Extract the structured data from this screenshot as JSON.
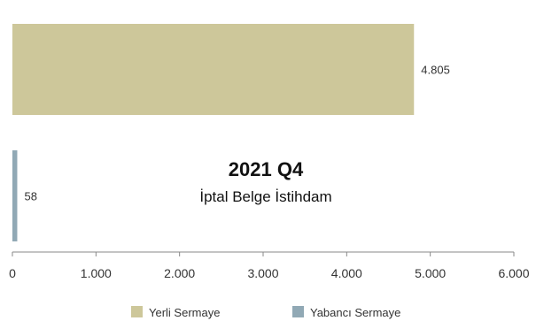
{
  "chart_data": {
    "type": "bar",
    "orientation": "horizontal",
    "title": "2021 Q4",
    "subtitle": "İptal Belge İstihdam",
    "categories": [
      "Yerli Sermaye",
      "Yabancı Sermaye"
    ],
    "values": [
      4805,
      58
    ],
    "data_labels": [
      "4.805",
      "58"
    ],
    "colors": [
      "#cdc79a",
      "#91a9b5"
    ],
    "xlim": [
      0,
      6000
    ],
    "x_ticks": [
      0,
      1000,
      2000,
      3000,
      4000,
      5000,
      6000
    ],
    "x_tick_labels": [
      "0",
      "1.000",
      "2.000",
      "3.000",
      "4.000",
      "5.000",
      "6.000"
    ],
    "grid": false,
    "legend": {
      "position": "bottom",
      "items": [
        {
          "label": "Yerli Sermaye",
          "color": "#cdc79a"
        },
        {
          "label": "Yabancı Sermaye",
          "color": "#91a9b5"
        }
      ]
    }
  }
}
